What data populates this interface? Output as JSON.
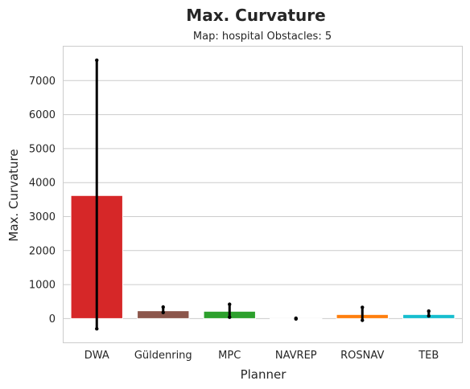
{
  "chart_data": {
    "type": "bar",
    "title": "Max. Curvature",
    "subtitle": "Map: hospital Obstacles: 5",
    "xlabel": "Planner",
    "ylabel": "Max. Curvature",
    "ylim": [
      -700,
      8000
    ],
    "yticks": [
      0,
      1000,
      2000,
      3000,
      4000,
      5000,
      6000,
      7000
    ],
    "grid": true,
    "categories": [
      "DWA",
      "Güldenring",
      "MPC",
      "NAVREP",
      "ROSNAV",
      "TEB"
    ],
    "values": [
      3620,
      230,
      215,
      0,
      120,
      120
    ],
    "error_low": [
      -300,
      180,
      40,
      -10,
      -50,
      80
    ],
    "error_high": [
      7600,
      340,
      420,
      10,
      330,
      220
    ],
    "colors": [
      "#d62728",
      "#8c564b",
      "#2ca02c",
      "#ffffff",
      "#ff7f0e",
      "#17becf"
    ]
  }
}
